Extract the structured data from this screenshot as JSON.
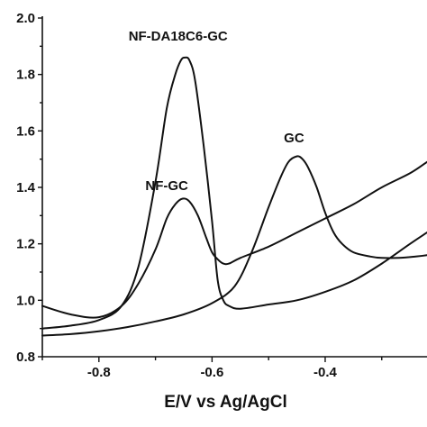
{
  "chart_data": {
    "type": "line",
    "title": "",
    "xlabel": "E/V vs Ag/AgCl",
    "ylabel": "",
    "xlim": [
      -0.9,
      -0.22
    ],
    "ylim": [
      0.8,
      2.0
    ],
    "x_ticks": [
      -0.8,
      -0.6,
      -0.4
    ],
    "x_tick_labels": [
      "-0.8",
      "-0.6",
      "-0.4"
    ],
    "y_ticks": [
      0.8,
      1.0,
      1.2,
      1.4,
      1.6,
      1.8,
      2.0
    ],
    "y_tick_labels": [
      "0.8",
      "1.0",
      "1.2",
      "1.4",
      "1.6",
      "1.8",
      "2.0"
    ],
    "grid": false,
    "legend": "none",
    "series": [
      {
        "name": "NF-DA18C6-GC",
        "x": [
          -0.9,
          -0.85,
          -0.8,
          -0.76,
          -0.73,
          -0.7,
          -0.68,
          -0.665,
          -0.655,
          -0.648,
          -0.64,
          -0.63,
          -0.615,
          -0.6,
          -0.59,
          -0.58,
          -0.57,
          -0.55,
          -0.5,
          -0.45,
          -0.4,
          -0.35,
          -0.3,
          -0.25,
          -0.22
        ],
        "y": [
          0.9,
          0.91,
          0.93,
          0.98,
          1.12,
          1.42,
          1.68,
          1.8,
          1.85,
          1.86,
          1.85,
          1.78,
          1.55,
          1.28,
          1.07,
          1.0,
          0.98,
          0.97,
          0.985,
          1.0,
          1.03,
          1.07,
          1.13,
          1.2,
          1.24
        ]
      },
      {
        "name": "NF-GC",
        "x": [
          -0.9,
          -0.85,
          -0.8,
          -0.76,
          -0.73,
          -0.7,
          -0.68,
          -0.665,
          -0.652,
          -0.64,
          -0.625,
          -0.61,
          -0.6,
          -0.59,
          -0.58,
          -0.57,
          -0.55,
          -0.5,
          -0.45,
          -0.4,
          -0.35,
          -0.3,
          -0.25,
          -0.22
        ],
        "y": [
          0.98,
          0.95,
          0.94,
          0.98,
          1.06,
          1.18,
          1.29,
          1.34,
          1.36,
          1.35,
          1.3,
          1.22,
          1.17,
          1.145,
          1.13,
          1.13,
          1.15,
          1.19,
          1.24,
          1.29,
          1.34,
          1.4,
          1.45,
          1.49
        ]
      },
      {
        "name": "GC",
        "x": [
          -0.9,
          -0.85,
          -0.8,
          -0.75,
          -0.7,
          -0.65,
          -0.6,
          -0.56,
          -0.53,
          -0.5,
          -0.48,
          -0.465,
          -0.45,
          -0.44,
          -0.43,
          -0.415,
          -0.4,
          -0.385,
          -0.37,
          -0.35,
          -0.32,
          -0.3,
          -0.27,
          -0.24,
          -0.22
        ],
        "y": [
          0.875,
          0.88,
          0.89,
          0.905,
          0.925,
          0.95,
          0.99,
          1.05,
          1.17,
          1.33,
          1.43,
          1.49,
          1.51,
          1.5,
          1.47,
          1.4,
          1.31,
          1.24,
          1.2,
          1.17,
          1.155,
          1.15,
          1.15,
          1.155,
          1.16
        ]
      }
    ],
    "annotations": [
      {
        "text": "NF-DA18C6-GC",
        "x": -0.66,
        "y": 1.92
      },
      {
        "text": "NF-GC",
        "x": -0.68,
        "y": 1.39
      },
      {
        "text": "GC",
        "x": -0.455,
        "y": 1.56
      }
    ]
  }
}
